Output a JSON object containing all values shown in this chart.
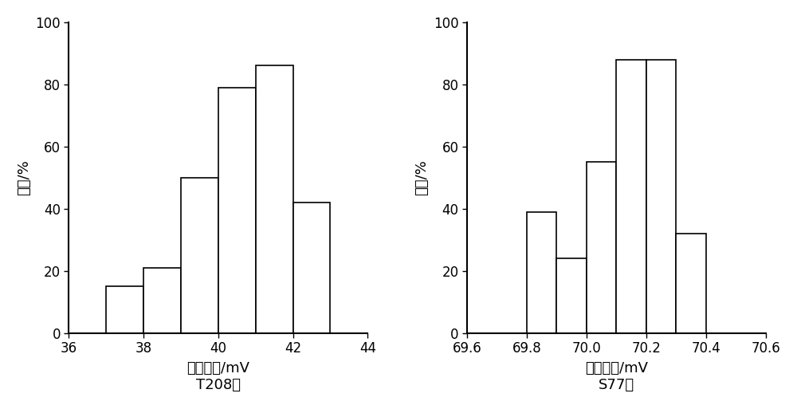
{
  "left": {
    "bar_left_edges": [
      37,
      38,
      39,
      40,
      41,
      42
    ],
    "bar_width": 1,
    "bar_heights": [
      15,
      21,
      50,
      79,
      86,
      42
    ],
    "xlim": [
      36,
      44
    ],
    "xticks": [
      36,
      38,
      40,
      42,
      44
    ],
    "ylim": [
      0,
      100
    ],
    "yticks": [
      0,
      20,
      40,
      60,
      80,
      100
    ],
    "xlabel_line1": "自然电位/mV",
    "xlabel_line2": "T208井",
    "ylabel": "频率/%"
  },
  "right": {
    "bar_left_edges": [
      69.8,
      69.9,
      70.0,
      70.1,
      70.2,
      70.3
    ],
    "bar_width": 0.1,
    "bar_heights": [
      39,
      24,
      55,
      88,
      88,
      32
    ],
    "xlim": [
      69.6,
      70.6
    ],
    "xticks": [
      69.6,
      69.8,
      70.0,
      70.2,
      70.4,
      70.6
    ],
    "ylim": [
      0,
      100
    ],
    "yticks": [
      0,
      20,
      40,
      60,
      80,
      100
    ],
    "xlabel_line1": "自然电位/mV",
    "xlabel_line2": "S77井",
    "ylabel": "频率/%"
  },
  "background_color": "#ffffff",
  "bar_facecolor": "#ffffff",
  "bar_edgecolor": "#000000",
  "bar_linewidth": 1.2,
  "axis_linewidth": 1.5,
  "tick_fontsize": 12,
  "label_fontsize": 13,
  "ylabel_fontsize": 13
}
